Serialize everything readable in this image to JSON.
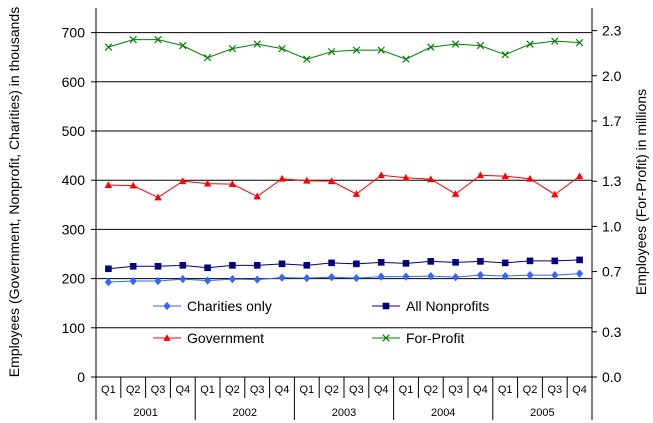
{
  "chart_data": {
    "type": "line",
    "title": "",
    "ylabel_left": "Employees (Government, Nonprofit, Charities) in thousands",
    "ylabel_right": "Employees (For-Profit) in millions",
    "ylim_left": [
      0,
      750
    ],
    "ylim_right": [
      0.0,
      2.45
    ],
    "yticks_left": [
      0,
      100,
      200,
      300,
      400,
      500,
      600,
      700
    ],
    "yticks_left_labels": [
      "0",
      "100",
      "200",
      "300",
      "400",
      "500",
      "600",
      "700"
    ],
    "yticks_right": [
      0.0,
      0.3,
      0.7,
      1.0,
      1.3,
      1.7,
      2.0,
      2.3
    ],
    "yticks_right_labels": [
      "0.0",
      "0.3",
      "0.7",
      "1.0",
      "1.3",
      "1.7",
      "2.0",
      "2.3"
    ],
    "grid": "horizontal",
    "legend_position": "bottom-center, inside plot",
    "x_quarters": [
      "Q1",
      "Q2",
      "Q3",
      "Q4",
      "Q1",
      "Q2",
      "Q3",
      "Q4",
      "Q1",
      "Q2",
      "Q3",
      "Q4",
      "Q1",
      "Q2",
      "Q3",
      "Q4",
      "Q1",
      "Q2",
      "Q3",
      "Q4"
    ],
    "x_years": [
      "2001",
      "2002",
      "2003",
      "2004",
      "2005"
    ],
    "series": [
      {
        "name": "Charities only",
        "axis": "left",
        "color": "#3366ff",
        "marker": "diamond",
        "values": [
          193,
          195,
          195,
          199,
          196,
          199,
          198,
          202,
          201,
          203,
          201,
          204,
          204,
          205,
          203,
          207,
          205,
          207,
          207,
          210
        ]
      },
      {
        "name": "All Nonprofits",
        "axis": "left",
        "color": "#000080",
        "marker": "square",
        "values": [
          220,
          225,
          225,
          227,
          222,
          227,
          227,
          230,
          227,
          232,
          230,
          233,
          231,
          235,
          233,
          235,
          232,
          236,
          236,
          238
        ]
      },
      {
        "name": "Government",
        "axis": "left",
        "color": "#ff0000",
        "marker": "triangle",
        "values": [
          390,
          389,
          365,
          398,
          393,
          392,
          367,
          403,
          399,
          398,
          372,
          410,
          405,
          402,
          372,
          410,
          408,
          403,
          371,
          408
        ]
      },
      {
        "name": "For-Profit",
        "axis": "right",
        "color": "#008000",
        "marker": "x",
        "values": [
          2.19,
          2.24,
          2.24,
          2.2,
          2.12,
          2.18,
          2.21,
          2.18,
          2.11,
          2.16,
          2.17,
          2.17,
          2.11,
          2.19,
          2.21,
          2.2,
          2.14,
          2.21,
          2.23,
          2.22
        ]
      }
    ]
  }
}
